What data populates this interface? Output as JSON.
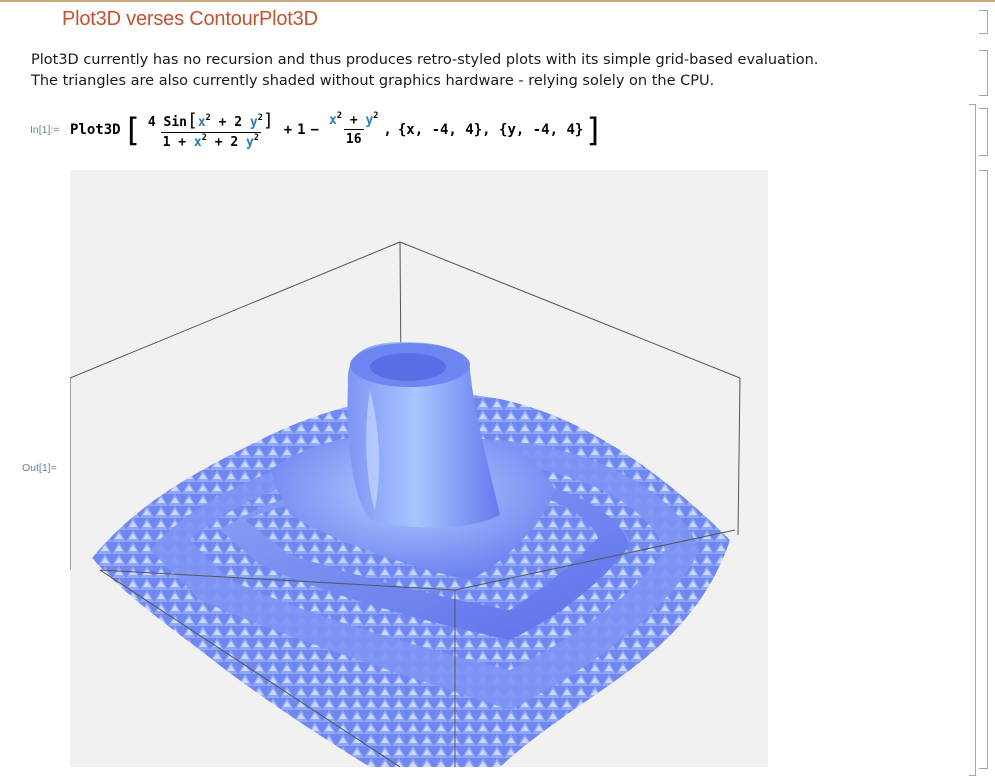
{
  "section_title": "Plot3D verses ContourPlot3D",
  "description": {
    "line1": "Plot3D currently has no recursion and thus produces retro-styled plots with its simple grid-based evaluation.",
    "line2": "The triangles are also currently shaded without graphics hardware - relying solely on the CPU."
  },
  "input_cell": {
    "label": "In[1]:=",
    "function": "Plot3D",
    "frac1_num_prefix": "4 Sin",
    "x_sym": "x",
    "y_sym": "y",
    "two": "2",
    "plus": "+",
    "one": "1",
    "minus": "−",
    "sixteen": "16",
    "comma": ",",
    "range_x": "{x, -4, 4}",
    "range_y": "{y, -4, 4}",
    "range_sep": ", "
  },
  "output_cell": {
    "label": "Out[1]="
  },
  "colors": {
    "title": "#c0522e",
    "variable": "#2a7fa8",
    "surface": "#6e86f2",
    "surface_light": "#a8c8ff",
    "plot_bg": "#f1f1f1",
    "cell_bracket": "#9aa6c4"
  }
}
